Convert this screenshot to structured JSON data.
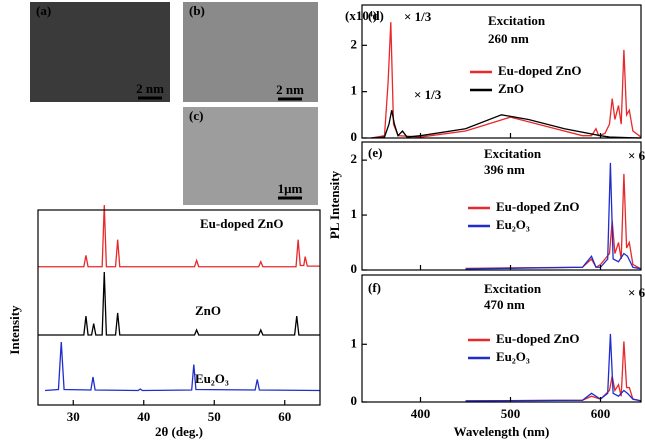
{
  "chart_data": [
    {
      "type": "xrd",
      "x_label": "2θ (deg.)",
      "y_label": "Intensity",
      "xlim": [
        25,
        65
      ],
      "xticks": [
        30,
        40,
        50,
        60
      ],
      "ylim": [
        0,
        100
      ],
      "annotations": [
        {
          "text": "(a)"
        },
        {
          "text": "2 nm"
        },
        {
          "text": "(b)"
        },
        {
          "text": "2 nm"
        },
        {
          "text": "(c)"
        },
        {
          "text": "1μm"
        }
      ],
      "series": [
        {
          "name": "Eu-doped ZnO",
          "color": "#e8282a",
          "x": [
            25,
            31.5,
            31.8,
            32.1,
            34.1,
            34.4,
            34.7,
            36,
            36.3,
            36.6,
            47.2,
            47.5,
            47.8,
            56.3,
            56.6,
            56.9,
            61.6,
            61.9,
            62.2,
            62.7,
            62.9,
            63.2,
            65
          ],
          "values": [
            2,
            2,
            20,
            2,
            2,
            100,
            2,
            2,
            45,
            2,
            2,
            12,
            2,
            2,
            10,
            2,
            2,
            45,
            4,
            4,
            18,
            3,
            3
          ]
        },
        {
          "name": "ZnO",
          "color": "#000000",
          "x": [
            25,
            31.5,
            31.8,
            32.1,
            32.6,
            32.9,
            33.2,
            34.1,
            34.4,
            34.7,
            36,
            36.3,
            36.6,
            47.2,
            47.5,
            47.8,
            56.3,
            56.6,
            56.9,
            61.4,
            61.7,
            62,
            65
          ],
          "values": [
            0,
            0,
            30,
            0,
            0,
            18,
            0,
            0,
            100,
            0,
            0,
            35,
            0,
            0,
            8,
            0,
            0,
            8,
            0,
            0,
            30,
            0,
            0
          ]
        },
        {
          "name": "Eu₂O₃",
          "color": "#1f2dcc",
          "x": [
            26,
            27.9,
            28.3,
            28.7,
            32.5,
            32.8,
            33.1,
            39.2,
            39.5,
            39.8,
            46.8,
            47.1,
            47.4,
            55.8,
            56.1,
            56.4,
            65
          ],
          "values": [
            3,
            5,
            100,
            5,
            4,
            30,
            4,
            3,
            6,
            3,
            4,
            55,
            5,
            4,
            25,
            4,
            3
          ]
        }
      ]
    },
    {
      "type": "line",
      "y_label": "PL Intensity",
      "xlim": [
        335,
        645
      ],
      "xticks": [
        400,
        500,
        600
      ],
      "ylim": [
        0,
        2.87
      ],
      "yticks": [
        0,
        1,
        2
      ],
      "annotations": [
        {
          "text": "(d)"
        },
        {
          "text": "Excitation"
        },
        {
          "text": "260 nm"
        },
        {
          "text": "× 1/3",
          "color": "#e8282a"
        },
        {
          "text": "× 1/3"
        },
        {
          "text": "(x10⁴)"
        }
      ],
      "series": [
        {
          "name": "Eu-doped ZnO",
          "color": "#e8282a",
          "x": [
            345,
            360,
            364,
            367,
            370,
            375,
            400,
            450,
            500,
            550,
            580,
            590,
            595,
            598,
            605,
            610,
            613,
            616,
            620,
            623,
            626,
            629,
            632,
            636,
            645
          ],
          "values": [
            0,
            0.05,
            1.2,
            2.5,
            0.3,
            0.05,
            0.02,
            0.15,
            0.45,
            0.2,
            0.05,
            0.05,
            0.2,
            0.05,
            0.1,
            0.3,
            0.85,
            0.4,
            0.7,
            0.3,
            1.9,
            0.5,
            0.6,
            0.15,
            0.02
          ]
        },
        {
          "name": "ZnO",
          "color": "#000000",
          "x": [
            345,
            360,
            365,
            368,
            371,
            375,
            380,
            385,
            400,
            450,
            490,
            520,
            560,
            600,
            610,
            645
          ],
          "values": [
            0,
            0.02,
            0.3,
            0.6,
            0.3,
            0.05,
            0.15,
            0.02,
            0.05,
            0.2,
            0.5,
            0.4,
            0.2,
            0.05,
            0.02,
            0
          ]
        }
      ]
    },
    {
      "type": "line",
      "xlim": [
        335,
        645
      ],
      "xticks": [
        400,
        500,
        600
      ],
      "ylim": [
        0,
        2.33
      ],
      "yticks": [
        0,
        1,
        2
      ],
      "annotations": [
        {
          "text": "(e)"
        },
        {
          "text": "Excitation"
        },
        {
          "text": "396 nm"
        },
        {
          "text": "× 6",
          "color": "#e8282a"
        }
      ],
      "series": [
        {
          "name": "Eu-doped ZnO",
          "color": "#e8282a",
          "x": [
            450,
            580,
            590,
            595,
            600,
            610,
            613,
            616,
            620,
            623,
            626,
            629,
            632,
            636,
            645
          ],
          "values": [
            0.03,
            0.05,
            0.2,
            0.05,
            0.1,
            0.3,
            0.9,
            0.3,
            0.5,
            0.2,
            1.75,
            0.4,
            0.5,
            0.1,
            0.02
          ]
        },
        {
          "name": "Eu₂O₃",
          "color": "#1f2dcc",
          "x": [
            450,
            580,
            590,
            595,
            600,
            608,
            611,
            614,
            620,
            626,
            630,
            636,
            645
          ],
          "values": [
            0.02,
            0.05,
            0.25,
            0.05,
            0.05,
            0.2,
            1.95,
            0.2,
            0.15,
            0.3,
            0.25,
            0.05,
            0.02
          ]
        }
      ]
    },
    {
      "type": "line",
      "x_label": "Wavelength (nm)",
      "xlim": [
        335,
        645
      ],
      "xticks": [
        400,
        500,
        600
      ],
      "ylim": [
        0,
        2.2
      ],
      "yticks": [
        0,
        1
      ],
      "annotations": [
        {
          "text": "(f)"
        },
        {
          "text": "Excitation"
        },
        {
          "text": "470 nm"
        },
        {
          "text": "× 6",
          "color": "#e8282a"
        }
      ],
      "series": [
        {
          "name": "Eu-doped ZnO",
          "color": "#e8282a",
          "x": [
            450,
            580,
            590,
            600,
            610,
            613,
            616,
            620,
            623,
            626,
            629,
            632,
            636,
            645
          ],
          "values": [
            0.02,
            0.03,
            0.1,
            0.05,
            0.2,
            0.45,
            0.2,
            0.3,
            0.1,
            1.05,
            0.25,
            0.25,
            0.05,
            0.02
          ]
        },
        {
          "name": "Eu₂O₃",
          "color": "#1f2dcc",
          "x": [
            450,
            580,
            590,
            600,
            608,
            611,
            614,
            620,
            626,
            630,
            636,
            645
          ],
          "values": [
            0.02,
            0.03,
            0.15,
            0.05,
            0.15,
            1.18,
            0.15,
            0.1,
            0.2,
            0.15,
            0.05,
            0.02
          ]
        }
      ]
    }
  ]
}
